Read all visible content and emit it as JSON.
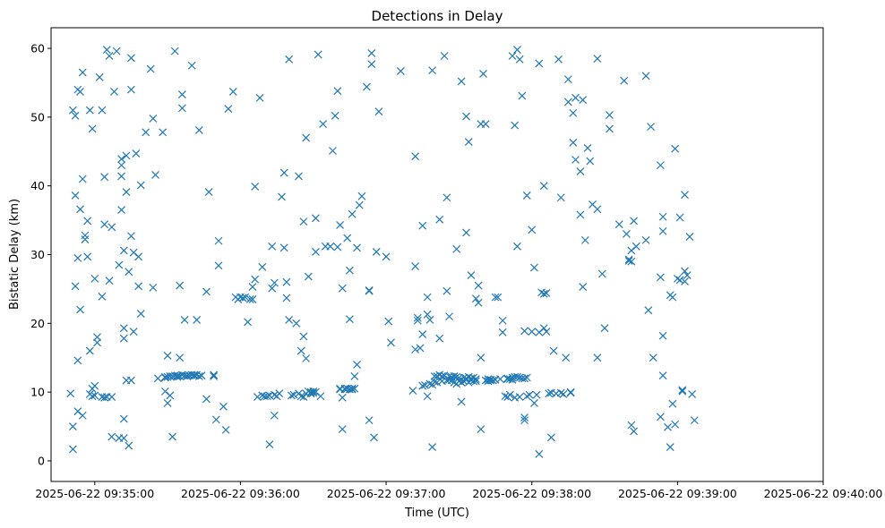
{
  "chart_data": {
    "type": "scatter",
    "title": "Detections in Delay",
    "xlabel": "Time (UTC)",
    "ylabel": "Bistatic Delay (km)",
    "marker": "x",
    "color": "#1f77b4",
    "x_unit": "seconds after 2025-06-22 09:35:00",
    "xlim": [
      -18,
      300
    ],
    "ylim": [
      -3,
      63
    ],
    "x_ticks": [
      {
        "value": 0,
        "label": "2025-06-22 09:35:00"
      },
      {
        "value": 60,
        "label": "2025-06-22 09:36:00"
      },
      {
        "value": 120,
        "label": "2025-06-22 09:37:00"
      },
      {
        "value": 180,
        "label": "2025-06-22 09:38:00"
      },
      {
        "value": 240,
        "label": "2025-06-22 09:39:00"
      },
      {
        "value": 300,
        "label": "2025-06-22 09:40:00"
      }
    ],
    "y_ticks": [
      {
        "value": 0,
        "label": "0"
      },
      {
        "value": 10,
        "label": "10"
      },
      {
        "value": 20,
        "label": "20"
      },
      {
        "value": 30,
        "label": "30"
      },
      {
        "value": 40,
        "label": "40"
      },
      {
        "value": 50,
        "label": "50"
      },
      {
        "value": 60,
        "label": "60"
      }
    ],
    "points": [
      [
        -10,
        9.8
      ],
      [
        -9,
        1.7
      ],
      [
        -9,
        5
      ],
      [
        -9,
        51
      ],
      [
        -8,
        50.2
      ],
      [
        -8,
        38.6
      ],
      [
        -8,
        25.4
      ],
      [
        -7,
        7.2
      ],
      [
        -7,
        14.6
      ],
      [
        -7,
        29.5
      ],
      [
        -7,
        54
      ],
      [
        -6,
        36.6
      ],
      [
        -6,
        53.7
      ],
      [
        -6,
        22
      ],
      [
        -5,
        41
      ],
      [
        -5,
        6.6
      ],
      [
        -5,
        56.5
      ],
      [
        -4,
        32.8
      ],
      [
        -4,
        32.2
      ],
      [
        -3,
        29.7
      ],
      [
        -3,
        34.9
      ],
      [
        -2,
        16
      ],
      [
        -2,
        51
      ],
      [
        -2,
        9.7
      ],
      [
        -1,
        9.4
      ],
      [
        -1,
        10.5
      ],
      [
        -1,
        48.3
      ],
      [
        0,
        10.9
      ],
      [
        0,
        26.5
      ],
      [
        0,
        9.5
      ],
      [
        1,
        17.2
      ],
      [
        1,
        18
      ],
      [
        2,
        55.8
      ],
      [
        3,
        9.3
      ],
      [
        3,
        23.9
      ],
      [
        3,
        51
      ],
      [
        4,
        9.2
      ],
      [
        4,
        41.3
      ],
      [
        4,
        34.4
      ],
      [
        5,
        9.3
      ],
      [
        5,
        59.8
      ],
      [
        6,
        26.2
      ],
      [
        6,
        58.9
      ],
      [
        7,
        9.3
      ],
      [
        7,
        34
      ],
      [
        7,
        3.5
      ],
      [
        8,
        53.7
      ],
      [
        9,
        59.6
      ],
      [
        10,
        3.3
      ],
      [
        10,
        28.5
      ],
      [
        11,
        41.4
      ],
      [
        11,
        43
      ],
      [
        11,
        43.9
      ],
      [
        11,
        36.5
      ],
      [
        12,
        3.3
      ],
      [
        12,
        30.6
      ],
      [
        12,
        17.8
      ],
      [
        12,
        19.3
      ],
      [
        12,
        6.1
      ],
      [
        13,
        44.4
      ],
      [
        13,
        11.7
      ],
      [
        13,
        39.1
      ],
      [
        14,
        27.5
      ],
      [
        14,
        2.2
      ],
      [
        15,
        11.7
      ],
      [
        15,
        32.7
      ],
      [
        15,
        54
      ],
      [
        15,
        58.6
      ],
      [
        16,
        30.3
      ],
      [
        16,
        18.8
      ],
      [
        17,
        44.7
      ],
      [
        18,
        29.7
      ],
      [
        18,
        25.4
      ],
      [
        19,
        40.1
      ],
      [
        19,
        21.4
      ],
      [
        21,
        47.8
      ],
      [
        23,
        57
      ],
      [
        24,
        49.8
      ],
      [
        24,
        25.2
      ],
      [
        25,
        41.6
      ],
      [
        26,
        12
      ],
      [
        28,
        47.8
      ],
      [
        29,
        12.2
      ],
      [
        29,
        12.1
      ],
      [
        29,
        10.1
      ],
      [
        30,
        15.3
      ],
      [
        30,
        8.4
      ],
      [
        30,
        12.2
      ],
      [
        31,
        9.5
      ],
      [
        31,
        12.3
      ],
      [
        32,
        12.3
      ],
      [
        32,
        3.5
      ],
      [
        33,
        12.4
      ],
      [
        33,
        59.6
      ],
      [
        34,
        12.2
      ],
      [
        34,
        12.4
      ],
      [
        35,
        25.5
      ],
      [
        35,
        15
      ],
      [
        35,
        12.3
      ],
      [
        36,
        53.3
      ],
      [
        36,
        51.3
      ],
      [
        36,
        12.5
      ],
      [
        37,
        12.4
      ],
      [
        37,
        20.5
      ],
      [
        38,
        12.4
      ],
      [
        38,
        12.3
      ],
      [
        39,
        12.4
      ],
      [
        40,
        12.5
      ],
      [
        40,
        57.5
      ],
      [
        41,
        12.4
      ],
      [
        41,
        12.5
      ],
      [
        42,
        12.5
      ],
      [
        42,
        20.5
      ],
      [
        43,
        48.1
      ],
      [
        43,
        12.3
      ],
      [
        44,
        12.4
      ],
      [
        46,
        9
      ],
      [
        46,
        24.6
      ],
      [
        47,
        39.1
      ],
      [
        49,
        12.3
      ],
      [
        49,
        12.5
      ],
      [
        50,
        6
      ],
      [
        51,
        32
      ],
      [
        51,
        28.4
      ],
      [
        53,
        7.9
      ],
      [
        54,
        4.5
      ],
      [
        55,
        51.2
      ],
      [
        57,
        53.7
      ],
      [
        58,
        23.8
      ],
      [
        59,
        23.5
      ],
      [
        60,
        23.8
      ],
      [
        61,
        23.7
      ],
      [
        62,
        23.8
      ],
      [
        63,
        20.2
      ],
      [
        64,
        23.5
      ],
      [
        65,
        23.5
      ],
      [
        65,
        25.3
      ],
      [
        66,
        26.4
      ],
      [
        66,
        39.9
      ],
      [
        67,
        9.3
      ],
      [
        68,
        52.8
      ],
      [
        69,
        9.5
      ],
      [
        69,
        28.2
      ],
      [
        70,
        9.4
      ],
      [
        71,
        9.4
      ],
      [
        72,
        2.4
      ],
      [
        72,
        9.5
      ],
      [
        73,
        25.1
      ],
      [
        73,
        31.2
      ],
      [
        74,
        9.6
      ],
      [
        74,
        6.6
      ],
      [
        74,
        25.9
      ],
      [
        75,
        9.4
      ],
      [
        76,
        9.8
      ],
      [
        77,
        38.4
      ],
      [
        78,
        41.9
      ],
      [
        78,
        31
      ],
      [
        79,
        26
      ],
      [
        79,
        23.7
      ],
      [
        80,
        58.4
      ],
      [
        80,
        20.5
      ],
      [
        81,
        9.5
      ],
      [
        82,
        9.6
      ],
      [
        83,
        20
      ],
      [
        84,
        9.8
      ],
      [
        84,
        41.4
      ],
      [
        85,
        9.4
      ],
      [
        85,
        16
      ],
      [
        86,
        9.3
      ],
      [
        86,
        18.1
      ],
      [
        86,
        34.8
      ],
      [
        87,
        14.9
      ],
      [
        87,
        47
      ],
      [
        87,
        9.8
      ],
      [
        88,
        26.8
      ],
      [
        88,
        10.1
      ],
      [
        89,
        9.8
      ],
      [
        89,
        10
      ],
      [
        90,
        9.9
      ],
      [
        90,
        10.1
      ],
      [
        91,
        10
      ],
      [
        91,
        35.3
      ],
      [
        91,
        30.4
      ],
      [
        92,
        59.1
      ],
      [
        93,
        9.4
      ],
      [
        94,
        49
      ],
      [
        95,
        31.2
      ],
      [
        97,
        31.2
      ],
      [
        98,
        45.1
      ],
      [
        99,
        50.2
      ],
      [
        100,
        53.8
      ],
      [
        100,
        31.1
      ],
      [
        101,
        10.4
      ],
      [
        101,
        10.5
      ],
      [
        101,
        34.3
      ],
      [
        102,
        4.6
      ],
      [
        102,
        9.2
      ],
      [
        102,
        25.1
      ],
      [
        103,
        10.5
      ],
      [
        103,
        10.4
      ],
      [
        104,
        32.4
      ],
      [
        104,
        10.5
      ],
      [
        105,
        10.4
      ],
      [
        105,
        20.6
      ],
      [
        105,
        27.7
      ],
      [
        106,
        10.5
      ],
      [
        106,
        35.9
      ],
      [
        106,
        10.4
      ],
      [
        107,
        10.5
      ],
      [
        107,
        12.3
      ],
      [
        108,
        31
      ],
      [
        108,
        14
      ],
      [
        109,
        37.2
      ],
      [
        110,
        38.5
      ],
      [
        112,
        54.4
      ],
      [
        113,
        24.8
      ],
      [
        113,
        24.7
      ],
      [
        113,
        5.9
      ],
      [
        114,
        59.3
      ],
      [
        114,
        57.7
      ],
      [
        115,
        3.4
      ],
      [
        116,
        30.4
      ],
      [
        117,
        50.8
      ],
      [
        120,
        29.7
      ],
      [
        121,
        20.3
      ],
      [
        122,
        17.2
      ],
      [
        126,
        56.7
      ],
      [
        131,
        10.2
      ],
      [
        132,
        16.2
      ],
      [
        132,
        28.3
      ],
      [
        132,
        44.3
      ],
      [
        133,
        20.8
      ],
      [
        133,
        20.4
      ],
      [
        134,
        16.4
      ],
      [
        135,
        10.9
      ],
      [
        135,
        34.2
      ],
      [
        135,
        18.4
      ],
      [
        136,
        11
      ],
      [
        137,
        21.3
      ],
      [
        137,
        23.8
      ],
      [
        137,
        9.4
      ],
      [
        138,
        11.2
      ],
      [
        138,
        20.5
      ],
      [
        139,
        11.1
      ],
      [
        139,
        56.8
      ],
      [
        139,
        2
      ],
      [
        140,
        12.3
      ],
      [
        140,
        11.5
      ],
      [
        141,
        12.3
      ],
      [
        141,
        11.4
      ],
      [
        142,
        35.1
      ],
      [
        142,
        12.5
      ],
      [
        142,
        17.8
      ],
      [
        143,
        12.3
      ],
      [
        143,
        11.6
      ],
      [
        144,
        58.9
      ],
      [
        144,
        12.4
      ],
      [
        145,
        24.7
      ],
      [
        145,
        11.7
      ],
      [
        145,
        38.3
      ],
      [
        146,
        12.3
      ],
      [
        146,
        21
      ],
      [
        146,
        11.8
      ],
      [
        147,
        12.2
      ],
      [
        147,
        11.7
      ],
      [
        148,
        11.4
      ],
      [
        148,
        12.3
      ],
      [
        149,
        11.2
      ],
      [
        149,
        12.2
      ],
      [
        149,
        30.8
      ],
      [
        150,
        11.6
      ],
      [
        150,
        12.1
      ],
      [
        151,
        8.6
      ],
      [
        151,
        55.2
      ],
      [
        151,
        11.4
      ],
      [
        152,
        12.1
      ],
      [
        152,
        11.6
      ],
      [
        153,
        11.8
      ],
      [
        153,
        12
      ],
      [
        153,
        33.2
      ],
      [
        153,
        50.1
      ],
      [
        154,
        12.2
      ],
      [
        154,
        46.4
      ],
      [
        154,
        11.4
      ],
      [
        155,
        11.7
      ],
      [
        155,
        27
      ],
      [
        155,
        12
      ],
      [
        156,
        12.1
      ],
      [
        156,
        11.6
      ],
      [
        157,
        11.6
      ],
      [
        157,
        11.9
      ],
      [
        157,
        23.6
      ],
      [
        158,
        23
      ],
      [
        158,
        25.5
      ],
      [
        159,
        49
      ],
      [
        159,
        15
      ],
      [
        159,
        4.6
      ],
      [
        160,
        56.3
      ],
      [
        161,
        11.7
      ],
      [
        161,
        49
      ],
      [
        162,
        11.9
      ],
      [
        162,
        11.6
      ],
      [
        163,
        11.7
      ],
      [
        163,
        11.8
      ],
      [
        164,
        11.7
      ],
      [
        165,
        23.8
      ],
      [
        165,
        11.8
      ],
      [
        166,
        23.8
      ],
      [
        167,
        11.9
      ],
      [
        168,
        18.7
      ],
      [
        168,
        20.4
      ],
      [
        169,
        9.4
      ],
      [
        170,
        12
      ],
      [
        170,
        11.9
      ],
      [
        170,
        9.3
      ],
      [
        171,
        11.9
      ],
      [
        171,
        9.6
      ],
      [
        172,
        11.8
      ],
      [
        172,
        12.1
      ],
      [
        172,
        58.9
      ],
      [
        173,
        9.2
      ],
      [
        173,
        12.2
      ],
      [
        173,
        48.8
      ],
      [
        174,
        59.8
      ],
      [
        174,
        12.2
      ],
      [
        174,
        31.2
      ],
      [
        175,
        9.3
      ],
      [
        175,
        12.1
      ],
      [
        175,
        58.4
      ],
      [
        176,
        12
      ],
      [
        176,
        53.1
      ],
      [
        177,
        18.9
      ],
      [
        177,
        12
      ],
      [
        177,
        6.3
      ],
      [
        177,
        5.9
      ],
      [
        178,
        12.1
      ],
      [
        178,
        9.4
      ],
      [
        178,
        38.6
      ],
      [
        179,
        9.6
      ],
      [
        180,
        18.8
      ],
      [
        180,
        33.6
      ],
      [
        181,
        28.1
      ],
      [
        181,
        8.4
      ],
      [
        182,
        9.6
      ],
      [
        183,
        1
      ],
      [
        183,
        57.8
      ],
      [
        183,
        18.7
      ],
      [
        184,
        24.5
      ],
      [
        185,
        24.3
      ],
      [
        185,
        40
      ],
      [
        185,
        19.3
      ],
      [
        186,
        24.4
      ],
      [
        186,
        18.8
      ],
      [
        187,
        9.8
      ],
      [
        188,
        3.4
      ],
      [
        188,
        9.9
      ],
      [
        189,
        16
      ],
      [
        190,
        9.8
      ],
      [
        191,
        58.4
      ],
      [
        192,
        38.3
      ],
      [
        192,
        9.9
      ],
      [
        193,
        9.7
      ],
      [
        194,
        15
      ],
      [
        195,
        55.5
      ],
      [
        195,
        52.2
      ],
      [
        196,
        10
      ],
      [
        196,
        9.9
      ],
      [
        197,
        46.3
      ],
      [
        197,
        50.6
      ],
      [
        198,
        43.8
      ],
      [
        198,
        52.8
      ],
      [
        200,
        42.1
      ],
      [
        200,
        35.8
      ],
      [
        201,
        25.3
      ],
      [
        201,
        52.5
      ],
      [
        202,
        32.1
      ],
      [
        203,
        45.5
      ],
      [
        204,
        43.6
      ],
      [
        205,
        37.3
      ],
      [
        207,
        36.6
      ],
      [
        207,
        58.5
      ],
      [
        207,
        15
      ],
      [
        209,
        27.2
      ],
      [
        210,
        19.3
      ],
      [
        212,
        50.3
      ],
      [
        212,
        48.3
      ],
      [
        216,
        34.4
      ],
      [
        218,
        55.3
      ],
      [
        219,
        33
      ],
      [
        220,
        29.1
      ],
      [
        220,
        29.3
      ],
      [
        221,
        5.2
      ],
      [
        221,
        29
      ],
      [
        221,
        30.6
      ],
      [
        222,
        34.9
      ],
      [
        222,
        4.3
      ],
      [
        223,
        31.2
      ],
      [
        227,
        56
      ],
      [
        227,
        32.1
      ],
      [
        228,
        21.9
      ],
      [
        229,
        48.6
      ],
      [
        230,
        15
      ],
      [
        233,
        43
      ],
      [
        233,
        26.7
      ],
      [
        233,
        6.4
      ],
      [
        234,
        35.5
      ],
      [
        234,
        33.4
      ],
      [
        234,
        18.2
      ],
      [
        234,
        12.4
      ],
      [
        236,
        4.9
      ],
      [
        237,
        2
      ],
      [
        237,
        24.1
      ],
      [
        238,
        8.3
      ],
      [
        238,
        23.8
      ],
      [
        239,
        45.4
      ],
      [
        239,
        5.3
      ],
      [
        240,
        26.5
      ],
      [
        241,
        35.4
      ],
      [
        241,
        26.3
      ],
      [
        242,
        10.3
      ],
      [
        242,
        10.1
      ],
      [
        243,
        38.7
      ],
      [
        243,
        26.1
      ],
      [
        243,
        27.6
      ],
      [
        244,
        27
      ],
      [
        245,
        32.6
      ],
      [
        246,
        9.7
      ],
      [
        247,
        5.9
      ]
    ]
  }
}
